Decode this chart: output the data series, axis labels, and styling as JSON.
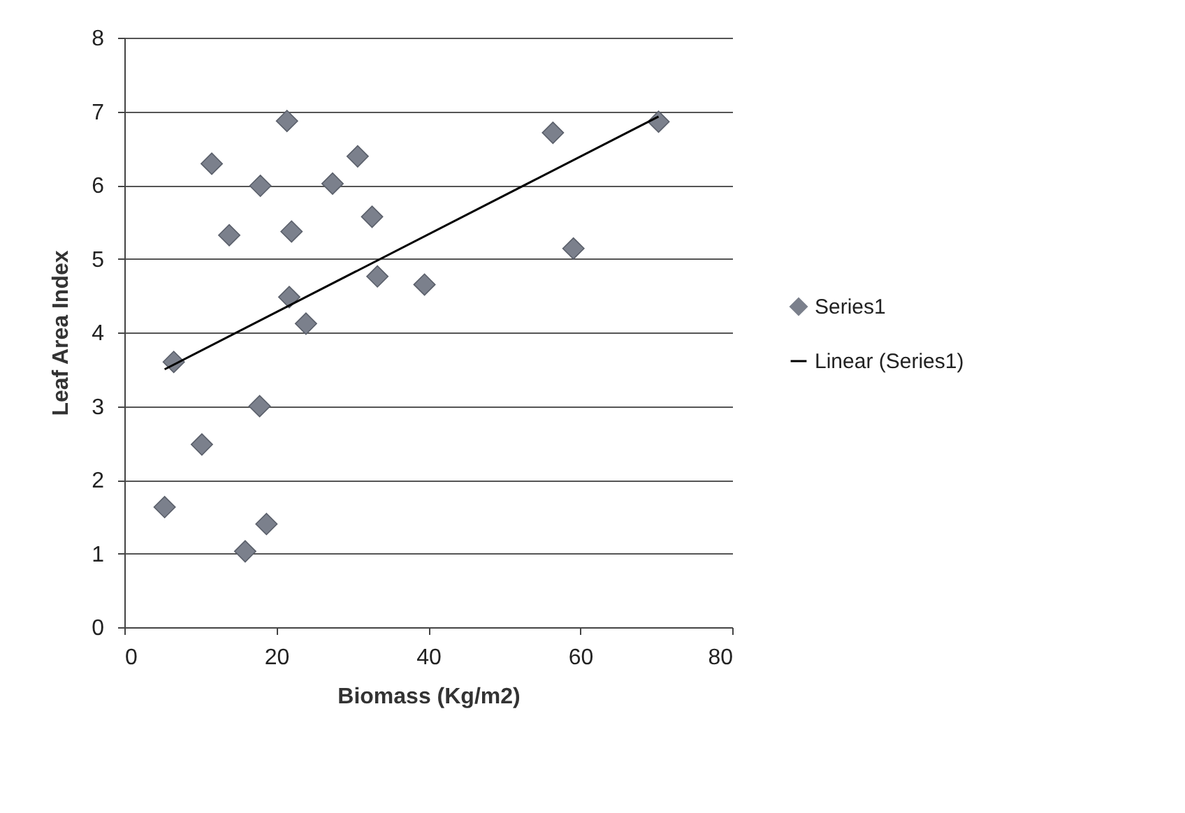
{
  "chart_data": {
    "type": "scatter",
    "xlabel": "Biomass (Kg/m2)",
    "ylabel": "Leaf Area Index",
    "xlim": [
      0,
      80
    ],
    "xticks": [
      0,
      20,
      40,
      60,
      80
    ],
    "ylim": [
      0,
      8
    ],
    "yticks": [
      0,
      1,
      2,
      3,
      4,
      5,
      6,
      7,
      8
    ],
    "grid": "y",
    "legend": "right",
    "series": [
      {
        "name": "Series1",
        "marker": "diamond",
        "color": "#7b808c",
        "x": [
          21.4,
          11.5,
          30.7,
          17.9,
          27.4,
          13.8,
          22.0,
          32.6,
          33.3,
          39.5,
          21.7,
          23.9,
          6.5,
          17.8,
          10.2,
          5.3,
          18.7,
          15.9,
          56.4,
          70.3,
          59.1
        ],
        "values": [
          6.87,
          6.29,
          6.39,
          5.99,
          6.02,
          5.32,
          5.37,
          5.57,
          4.76,
          4.65,
          4.48,
          4.12,
          3.6,
          3.0,
          2.48,
          1.63,
          1.4,
          1.03,
          6.71,
          6.86,
          5.14
        ]
      },
      {
        "name": "Linear (Series1)",
        "type": "line",
        "color": "#000000",
        "line_style": "solid",
        "x": [
          5.3,
          70.3
        ],
        "values": [
          3.5,
          6.93
        ]
      }
    ]
  }
}
